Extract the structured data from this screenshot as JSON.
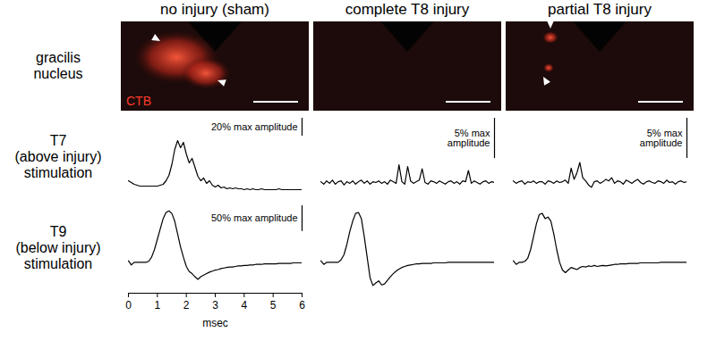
{
  "column_titles": [
    "no injury (sham)",
    "complete T8 injury",
    "partial T8 injury"
  ],
  "row_labels": [
    "gracilis nucleus",
    "T7 (above injury) stimulation",
    "T9 (below injury) stimulation"
  ],
  "image_label": "CTB",
  "chart_data": [
    {
      "type": "line",
      "color": "#000000",
      "tick_labels": false,
      "xlim": [
        0,
        6
      ],
      "ylim": [
        -10,
        80
      ],
      "scale_bar": {
        "value": 20,
        "label": "20% max amplitude"
      },
      "x": [
        0,
        0.1,
        0.2,
        0.3,
        0.4,
        0.5,
        0.6,
        0.7,
        0.8,
        0.9,
        1,
        1.1,
        1.2,
        1.3,
        1.4,
        1.5,
        1.6,
        1.7,
        1.8,
        1.9,
        2,
        2.1,
        2.2,
        2.3,
        2.4,
        2.5,
        2.6,
        2.7,
        2.8,
        2.9,
        3,
        3.1,
        3.2,
        3.3,
        3.4,
        3.5,
        3.6,
        3.7,
        3.8,
        3.9,
        4,
        4.1,
        4.2,
        4.3,
        4.4,
        4.5,
        4.6,
        4.7,
        4.8,
        4.9,
        5,
        5.1,
        5.2,
        5.3,
        5.4,
        5.5,
        5.6,
        5.7,
        5.8,
        5.9,
        6
      ],
      "values": [
        10,
        8,
        6,
        5,
        4,
        4,
        4,
        4,
        4,
        4,
        4,
        5,
        6,
        10,
        16,
        28,
        45,
        55,
        47,
        53,
        40,
        30,
        35,
        25,
        15,
        10,
        13,
        7,
        10,
        5,
        3,
        5,
        2,
        3,
        1,
        2,
        1,
        2,
        1,
        1,
        0,
        1,
        0,
        1,
        0,
        0,
        1,
        0,
        0,
        0,
        0,
        0,
        1,
        0,
        0,
        0,
        0,
        0,
        0,
        0,
        0
      ]
    },
    {
      "type": "line",
      "color": "#000000",
      "tick_labels": false,
      "xlim": [
        0,
        6
      ],
      "ylim": [
        -2,
        8
      ],
      "scale_bar": {
        "value": 5,
        "label": "5% max amplitude"
      },
      "x": [
        0,
        0.1,
        0.2,
        0.3,
        0.4,
        0.5,
        0.6,
        0.7,
        0.8,
        0.9,
        1,
        1.1,
        1.2,
        1.3,
        1.4,
        1.5,
        1.6,
        1.7,
        1.8,
        1.9,
        2,
        2.1,
        2.2,
        2.3,
        2.4,
        2.5,
        2.6,
        2.7,
        2.8,
        2.9,
        3,
        3.1,
        3.2,
        3.3,
        3.4,
        3.5,
        3.6,
        3.7,
        3.8,
        3.9,
        4,
        4.1,
        4.2,
        4.3,
        4.4,
        4.5,
        4.6,
        4.7,
        4.8,
        4.9,
        5,
        5.1,
        5.2,
        5.3,
        5.4,
        5.5,
        5.6,
        5.7,
        5.8,
        5.9,
        6
      ],
      "values": [
        0.1,
        -0.2,
        0.2,
        -0.1,
        0.3,
        -0.2,
        0.1,
        0.2,
        -0.3,
        0.1,
        -0.1,
        0.2,
        -0.2,
        0.1,
        0.3,
        -0.1,
        0.2,
        -0.2,
        0.1,
        0,
        0.2,
        -0.1,
        0.1,
        -0.2,
        0.3,
        0.1,
        -0.1,
        2.2,
        0.1,
        -0.2,
        2.0,
        0.2,
        -0.1,
        0.1,
        0.3,
        1.7,
        0,
        -0.2,
        0.2,
        0.1,
        -0.1,
        0.2,
        0,
        -0.2,
        0.1,
        0.2,
        -0.1,
        0.1,
        -0.2,
        0.2,
        0.1,
        1.5,
        -0.1,
        0.2,
        0,
        -0.2,
        0.1,
        0.2,
        -0.1,
        0.1,
        0
      ]
    },
    {
      "type": "line",
      "color": "#000000",
      "tick_labels": false,
      "xlim": [
        0,
        6
      ],
      "ylim": [
        -2,
        8
      ],
      "scale_bar": {
        "value": 5,
        "label": "5% max amplitude"
      },
      "x": [
        0,
        0.1,
        0.2,
        0.3,
        0.4,
        0.5,
        0.6,
        0.7,
        0.8,
        0.9,
        1,
        1.1,
        1.2,
        1.3,
        1.4,
        1.5,
        1.6,
        1.7,
        1.8,
        1.9,
        2,
        2.1,
        2.2,
        2.3,
        2.4,
        2.5,
        2.6,
        2.7,
        2.8,
        2.9,
        3,
        3.1,
        3.2,
        3.3,
        3.4,
        3.5,
        3.6,
        3.7,
        3.8,
        3.9,
        4,
        4.1,
        4.2,
        4.3,
        4.4,
        4.5,
        4.6,
        4.7,
        4.8,
        4.9,
        5,
        5.1,
        5.2,
        5.3,
        5.4,
        5.5,
        5.6,
        5.7,
        5.8,
        5.9,
        6
      ],
      "values": [
        0.2,
        -0.1,
        0.1,
        0.2,
        -0.2,
        0.1,
        0,
        0.2,
        -0.1,
        0.1,
        0.1,
        -0.2,
        0.2,
        0.1,
        -0.1,
        0.2,
        0,
        0.1,
        0.3,
        -0.1,
        1.8,
        0.4,
        1.2,
        2.5,
        0.6,
        0.2,
        -0.3,
        -0.6,
        0.1,
        0.2,
        -0.1,
        0.1,
        0.4,
        0.2,
        0.6,
        -0.1,
        0.2,
        0.1,
        -0.2,
        0.3,
        0.1,
        -0.1,
        0.2,
        0.4,
        0,
        -0.2,
        0.1,
        0.2,
        0,
        -0.1,
        0.2,
        0.1,
        -0.1,
        0.3,
        0,
        0.1,
        -0.2,
        0.1,
        0.2,
        0,
        0.1
      ]
    },
    {
      "type": "line",
      "color": "#000000",
      "tick_labels": "x",
      "xlim": [
        0,
        6
      ],
      "ylim": [
        -60,
        110
      ],
      "xticks": [
        0,
        1,
        2,
        3,
        4,
        5,
        6
      ],
      "xlabel": "msec",
      "scale_bar": {
        "value": 50,
        "label": "50% max amplitude"
      },
      "x": [
        0,
        0.1,
        0.2,
        0.3,
        0.4,
        0.5,
        0.6,
        0.7,
        0.8,
        0.9,
        1,
        1.1,
        1.2,
        1.3,
        1.4,
        1.5,
        1.6,
        1.7,
        1.8,
        1.9,
        2,
        2.1,
        2.2,
        2.3,
        2.4,
        2.5,
        2.6,
        2.7,
        2.8,
        2.9,
        3,
        3.1,
        3.2,
        3.3,
        3.4,
        3.5,
        3.6,
        3.7,
        3.8,
        3.9,
        4,
        4.1,
        4.2,
        4.3,
        4.4,
        4.5,
        4.6,
        4.7,
        4.8,
        4.9,
        5,
        5.1,
        5.2,
        5.3,
        5.4,
        5.5,
        5.6,
        5.7,
        5.8,
        5.9,
        6
      ],
      "values": [
        3,
        -5,
        0,
        0,
        0,
        0,
        0,
        2,
        10,
        25,
        45,
        65,
        85,
        97,
        100,
        95,
        80,
        55,
        30,
        10,
        -8,
        -18,
        -22,
        -28,
        -33,
        -28,
        -25,
        -22,
        -19,
        -17,
        -15,
        -14,
        -12,
        -11,
        -10,
        -9,
        -9,
        -8,
        -7,
        -7,
        -6,
        -6,
        -5,
        -5,
        -4,
        -4,
        -4,
        -3,
        -3,
        -3,
        -3,
        -3,
        -2,
        -2,
        -2,
        -2,
        -2,
        -1,
        -1,
        -1,
        -1
      ]
    },
    {
      "type": "line",
      "color": "#000000",
      "tick_labels": false,
      "xlim": [
        0,
        6
      ],
      "ylim": [
        -60,
        110
      ],
      "x": [
        0,
        0.1,
        0.2,
        0.3,
        0.4,
        0.5,
        0.6,
        0.7,
        0.8,
        0.9,
        1,
        1.1,
        1.2,
        1.3,
        1.4,
        1.5,
        1.6,
        1.7,
        1.8,
        1.9,
        2,
        2.1,
        2.2,
        2.3,
        2.4,
        2.5,
        2.6,
        2.7,
        2.8,
        2.9,
        3,
        3.1,
        3.2,
        3.3,
        3.4,
        3.5,
        3.6,
        3.7,
        3.8,
        3.9,
        4,
        4.1,
        4.2,
        4.3,
        4.4,
        4.5,
        4.6,
        4.7,
        4.8,
        4.9,
        5,
        5.1,
        5.2,
        5.3,
        5.4,
        5.5,
        5.6,
        5.7,
        5.8,
        5.9,
        6
      ],
      "values": [
        3,
        -4,
        0,
        0,
        0,
        0,
        0,
        5,
        15,
        35,
        60,
        80,
        95,
        97,
        85,
        50,
        10,
        -30,
        -45,
        -40,
        -36,
        -44,
        -42,
        -35,
        -28,
        -22,
        -17,
        -13,
        -10,
        -8,
        -6,
        -5,
        -4,
        -3,
        -3,
        -2,
        -2,
        -2,
        -2,
        -1,
        -1,
        -1,
        -1,
        -1,
        0,
        0,
        0,
        0,
        0,
        0,
        0,
        0,
        0,
        0,
        0,
        0,
        0,
        0,
        0,
        0,
        0
      ]
    },
    {
      "type": "line",
      "color": "#000000",
      "tick_labels": false,
      "xlim": [
        0,
        6
      ],
      "ylim": [
        -60,
        110
      ],
      "x": [
        0,
        0.1,
        0.2,
        0.3,
        0.4,
        0.5,
        0.6,
        0.7,
        0.8,
        0.9,
        1,
        1.1,
        1.2,
        1.3,
        1.4,
        1.5,
        1.6,
        1.7,
        1.8,
        1.9,
        2,
        2.1,
        2.2,
        2.3,
        2.4,
        2.5,
        2.6,
        2.7,
        2.8,
        2.9,
        3,
        3.1,
        3.2,
        3.3,
        3.4,
        3.5,
        3.6,
        3.7,
        3.8,
        3.9,
        4,
        4.1,
        4.2,
        4.3,
        4.4,
        4.5,
        4.6,
        4.7,
        4.8,
        4.9,
        5,
        5.1,
        5.2,
        5.3,
        5.4,
        5.5,
        5.6,
        5.7,
        5.8,
        5.9,
        6
      ],
      "values": [
        3,
        -4,
        0,
        0,
        2,
        8,
        25,
        50,
        75,
        93,
        95,
        85,
        88,
        80,
        55,
        25,
        0,
        -15,
        -20,
        -15,
        -10,
        -12,
        -14,
        -10,
        -8,
        -9,
        -7,
        -8,
        -6,
        -8,
        -7,
        -6,
        -7,
        -6,
        -5,
        -4,
        -4,
        -3,
        -3,
        -3,
        -2,
        -2,
        -2,
        -2,
        -1,
        -1,
        -1,
        -1,
        -1,
        -1,
        -1,
        0,
        0,
        0,
        0,
        0,
        0,
        0,
        0,
        0,
        0
      ]
    }
  ]
}
